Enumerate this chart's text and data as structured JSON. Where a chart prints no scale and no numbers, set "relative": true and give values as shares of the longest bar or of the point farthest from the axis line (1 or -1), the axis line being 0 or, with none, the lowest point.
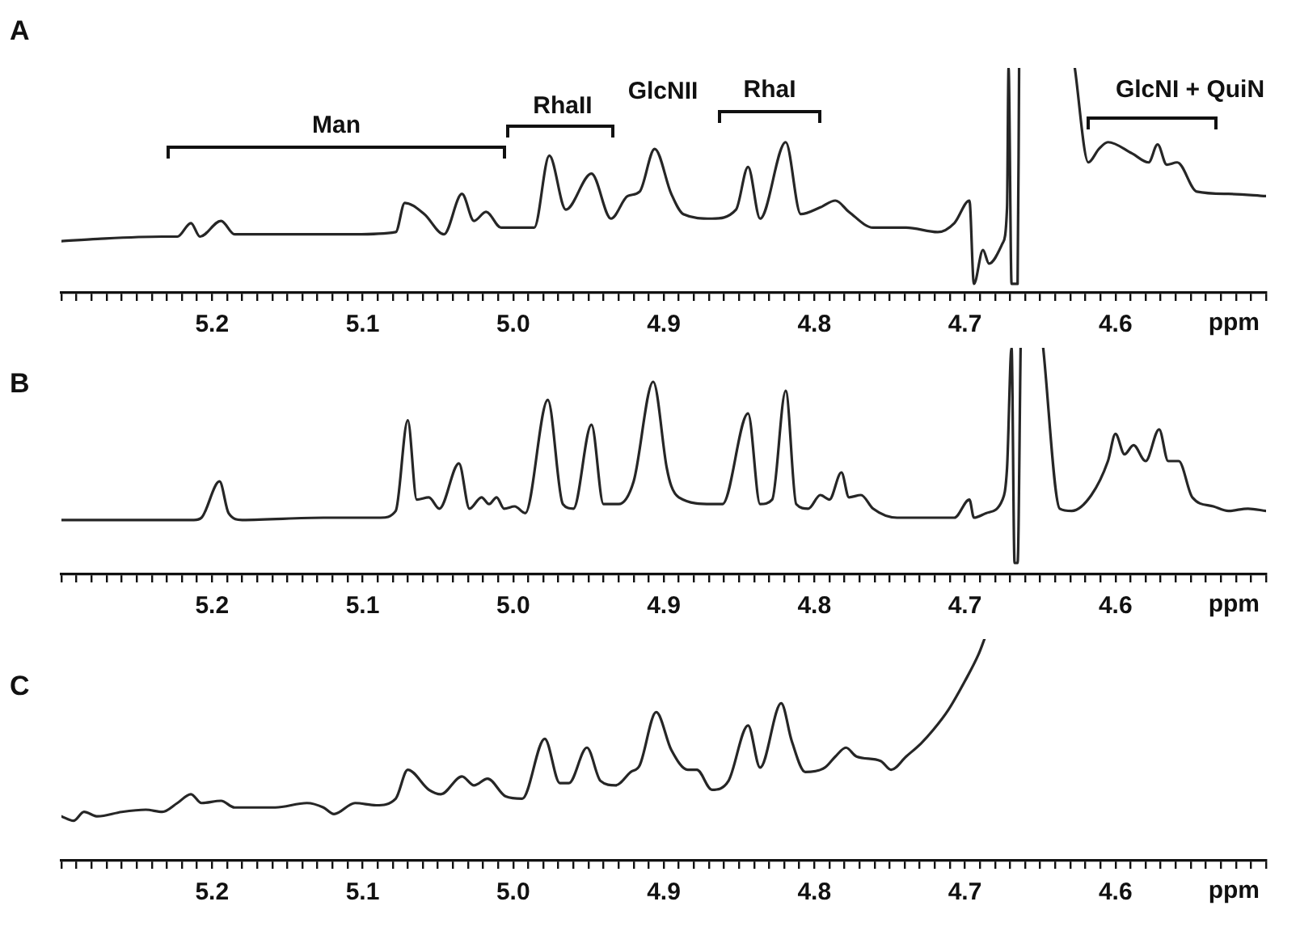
{
  "chart_data": [
    {
      "type": "line",
      "title": "A",
      "xlabel": "ppm",
      "relative": true,
      "xlim": [
        5.3,
        4.5
      ],
      "xticks": [
        {
          "value": 5.3,
          "label": null
        },
        {
          "value": 5.29,
          "label": null
        },
        {
          "value": 5.28,
          "label": null
        },
        {
          "value": 5.27,
          "label": null
        },
        {
          "value": 5.26,
          "label": null
        },
        {
          "value": 5.25,
          "label": null
        },
        {
          "value": 5.24,
          "label": null
        },
        {
          "value": 5.23,
          "label": null
        },
        {
          "value": 5.22,
          "label": null
        },
        {
          "value": 5.21,
          "label": null
        },
        5.2,
        {
          "value": 5.19,
          "label": null
        },
        {
          "value": 5.18,
          "label": null
        },
        {
          "value": 5.17,
          "label": null
        },
        {
          "value": 5.16,
          "label": null
        },
        {
          "value": 5.15,
          "label": null
        },
        {
          "value": 5.14,
          "label": null
        },
        {
          "value": 5.13,
          "label": null
        },
        {
          "value": 5.12,
          "label": null
        },
        {
          "value": 5.11,
          "label": null
        },
        5.1,
        {
          "value": 5.09,
          "label": null
        },
        {
          "value": 5.08,
          "label": null
        },
        {
          "value": 5.07,
          "label": null
        },
        {
          "value": 5.06,
          "label": null
        },
        {
          "value": 5.05,
          "label": null
        },
        {
          "value": 5.04,
          "label": null
        },
        {
          "value": 5.03,
          "label": null
        },
        {
          "value": 5.02,
          "label": null
        },
        {
          "value": 5.01,
          "label": null
        },
        {
          "value": 5.0,
          "label": "5.0"
        },
        {
          "value": 4.99,
          "label": null
        },
        {
          "value": 4.98,
          "label": null
        },
        {
          "value": 4.97,
          "label": null
        },
        {
          "value": 4.96,
          "label": null
        },
        {
          "value": 4.95,
          "label": null
        },
        {
          "value": 4.94,
          "label": null
        },
        {
          "value": 4.93,
          "label": null
        },
        {
          "value": 4.92,
          "label": null
        },
        {
          "value": 4.91,
          "label": null
        },
        4.9,
        {
          "value": 4.89,
          "label": null
        },
        {
          "value": 4.88,
          "label": null
        },
        {
          "value": 4.87,
          "label": null
        },
        {
          "value": 4.86,
          "label": null
        },
        {
          "value": 4.85,
          "label": null
        },
        {
          "value": 4.84,
          "label": null
        },
        {
          "value": 4.83,
          "label": null
        },
        {
          "value": 4.82,
          "label": null
        },
        {
          "value": 4.81,
          "label": null
        },
        4.8,
        {
          "value": 4.79,
          "label": null
        },
        {
          "value": 4.78,
          "label": null
        },
        {
          "value": 4.77,
          "label": null
        },
        {
          "value": 4.76,
          "label": null
        },
        {
          "value": 4.75,
          "label": null
        },
        {
          "value": 4.74,
          "label": null
        },
        {
          "value": 4.73,
          "label": null
        },
        {
          "value": 4.72,
          "label": null
        },
        {
          "value": 4.71,
          "label": null
        },
        4.7,
        {
          "value": 4.69,
          "label": null
        },
        {
          "value": 4.68,
          "label": null
        },
        {
          "value": 4.67,
          "label": null
        },
        {
          "value": 4.66,
          "label": null
        },
        {
          "value": 4.65,
          "label": null
        },
        {
          "value": 4.64,
          "label": null
        },
        {
          "value": 4.63,
          "label": null
        },
        {
          "value": 4.62,
          "label": null
        },
        {
          "value": 4.61,
          "label": null
        },
        4.6,
        {
          "value": 4.59,
          "label": null
        },
        {
          "value": 4.58,
          "label": null
        },
        {
          "value": 4.57,
          "label": null
        },
        {
          "value": 4.56,
          "label": null
        },
        {
          "value": 4.55,
          "label": null
        },
        {
          "value": 4.54,
          "label": null
        },
        {
          "value": 4.53,
          "label": null
        },
        {
          "value": 4.52,
          "label": null
        },
        {
          "value": 4.51,
          "label": null
        },
        {
          "value": 4.5,
          "label": null
        }
      ],
      "series": [
        {
          "color": "#262626",
          "x": [
            5.3,
            5.276,
            5.233,
            5.223,
            5.214,
            5.208,
            5.194,
            5.185,
            5.148,
            5.105,
            5.078,
            5.072,
            5.059,
            5.046,
            5.034,
            5.026,
            5.018,
            5.008,
            4.995,
            4.986,
            4.976,
            4.965,
            4.948,
            4.935,
            4.924,
            4.916,
            4.906,
            4.895,
            4.887,
            4.868,
            4.852,
            4.844,
            4.836,
            4.819,
            4.809,
            4.796,
            4.786,
            4.777,
            4.761,
            4.739,
            4.718,
            4.707,
            4.697,
            4.694,
            4.688,
            4.684,
            4.675,
            4.672,
            4.671,
            4.669,
            4.665,
            4.664,
            4.65,
            4.627,
            4.618,
            4.611,
            4.605,
            4.589,
            4.578,
            4.572,
            4.566,
            4.559,
            4.546,
            4.525,
            4.5
          ],
          "values": [
            0.23,
            0.24,
            0.25,
            0.25,
            0.31,
            0.25,
            0.32,
            0.26,
            0.26,
            0.26,
            0.27,
            0.4,
            0.35,
            0.26,
            0.44,
            0.32,
            0.36,
            0.29,
            0.29,
            0.29,
            0.61,
            0.37,
            0.53,
            0.33,
            0.43,
            0.45,
            0.64,
            0.44,
            0.35,
            0.33,
            0.37,
            0.56,
            0.33,
            0.67,
            0.35,
            0.38,
            0.41,
            0.36,
            0.29,
            0.29,
            0.27,
            0.31,
            0.41,
            0.04,
            0.19,
            0.13,
            0.22,
            0.38,
            1,
            0.04,
            0.04,
            1,
            null,
            1,
            0.58,
            0.64,
            0.67,
            0.62,
            0.58,
            0.66,
            0.57,
            0.58,
            0.45,
            0.44,
            0.43
          ]
        }
      ],
      "annotations": [
        "Man",
        "RhaII",
        "GlcNII",
        "RhaI",
        "GlcNI + QuiN"
      ]
    },
    {
      "type": "line",
      "title": "B",
      "xlabel": "ppm",
      "relative": true,
      "xlim": [
        5.3,
        4.5
      ],
      "xticks": [
        {
          "value": 5.3,
          "label": null
        },
        {
          "value": 5.29,
          "label": null
        },
        {
          "value": 5.28,
          "label": null
        },
        {
          "value": 5.27,
          "label": null
        },
        {
          "value": 5.26,
          "label": null
        },
        {
          "value": 5.25,
          "label": null
        },
        {
          "value": 5.24,
          "label": null
        },
        {
          "value": 5.23,
          "label": null
        },
        {
          "value": 5.22,
          "label": null
        },
        {
          "value": 5.21,
          "label": null
        },
        5.2,
        {
          "value": 5.19,
          "label": null
        },
        {
          "value": 5.18,
          "label": null
        },
        {
          "value": 5.17,
          "label": null
        },
        {
          "value": 5.16,
          "label": null
        },
        {
          "value": 5.15,
          "label": null
        },
        {
          "value": 5.14,
          "label": null
        },
        {
          "value": 5.13,
          "label": null
        },
        {
          "value": 5.12,
          "label": null
        },
        {
          "value": 5.11,
          "label": null
        },
        5.1,
        {
          "value": 5.09,
          "label": null
        },
        {
          "value": 5.08,
          "label": null
        },
        {
          "value": 5.07,
          "label": null
        },
        {
          "value": 5.06,
          "label": null
        },
        {
          "value": 5.05,
          "label": null
        },
        {
          "value": 5.04,
          "label": null
        },
        {
          "value": 5.03,
          "label": null
        },
        {
          "value": 5.02,
          "label": null
        },
        {
          "value": 5.01,
          "label": null
        },
        {
          "value": 5.0,
          "label": "5.0"
        },
        {
          "value": 4.99,
          "label": null
        },
        {
          "value": 4.98,
          "label": null
        },
        {
          "value": 4.97,
          "label": null
        },
        {
          "value": 4.96,
          "label": null
        },
        {
          "value": 4.95,
          "label": null
        },
        {
          "value": 4.94,
          "label": null
        },
        {
          "value": 4.93,
          "label": null
        },
        {
          "value": 4.92,
          "label": null
        },
        {
          "value": 4.91,
          "label": null
        },
        4.9,
        {
          "value": 4.89,
          "label": null
        },
        {
          "value": 4.88,
          "label": null
        },
        {
          "value": 4.87,
          "label": null
        },
        {
          "value": 4.86,
          "label": null
        },
        {
          "value": 4.85,
          "label": null
        },
        {
          "value": 4.84,
          "label": null
        },
        {
          "value": 4.83,
          "label": null
        },
        {
          "value": 4.82,
          "label": null
        },
        {
          "value": 4.81,
          "label": null
        },
        4.8,
        {
          "value": 4.79,
          "label": null
        },
        {
          "value": 4.78,
          "label": null
        },
        {
          "value": 4.77,
          "label": null
        },
        {
          "value": 4.76,
          "label": null
        },
        {
          "value": 4.75,
          "label": null
        },
        {
          "value": 4.74,
          "label": null
        },
        {
          "value": 4.73,
          "label": null
        },
        {
          "value": 4.72,
          "label": null
        },
        {
          "value": 4.71,
          "label": null
        },
        4.7,
        {
          "value": 4.69,
          "label": null
        },
        {
          "value": 4.68,
          "label": null
        },
        {
          "value": 4.67,
          "label": null
        },
        {
          "value": 4.66,
          "label": null
        },
        {
          "value": 4.65,
          "label": null
        },
        {
          "value": 4.64,
          "label": null
        },
        {
          "value": 4.63,
          "label": null
        },
        {
          "value": 4.62,
          "label": null
        },
        {
          "value": 4.61,
          "label": null
        },
        4.6,
        {
          "value": 4.59,
          "label": null
        },
        {
          "value": 4.58,
          "label": null
        },
        {
          "value": 4.57,
          "label": null
        },
        {
          "value": 4.56,
          "label": null
        },
        {
          "value": 4.55,
          "label": null
        },
        {
          "value": 4.54,
          "label": null
        },
        {
          "value": 4.53,
          "label": null
        },
        {
          "value": 4.52,
          "label": null
        },
        {
          "value": 4.51,
          "label": null
        },
        {
          "value": 4.5,
          "label": null
        }
      ],
      "series": [
        {
          "color": "#262626",
          "x": [
            5.3,
            5.233,
            5.212,
            5.207,
            5.195,
            5.189,
            5.18,
            5.126,
            5.088,
            5.078,
            5.07,
            5.064,
            5.056,
            5.049,
            5.036,
            5.029,
            5.021,
            5.016,
            5.011,
            5.006,
            4.999,
            4.992,
            4.977,
            4.967,
            4.96,
            4.948,
            4.94,
            4.93,
            4.92,
            4.907,
            4.898,
            4.895,
            4.89,
            4.868,
            4.861,
            4.844,
            4.836,
            4.828,
            4.819,
            4.812,
            4.804,
            4.796,
            4.79,
            4.782,
            4.777,
            4.769,
            4.761,
            4.745,
            4.707,
            4.697,
            4.694,
            4.686,
            4.675,
            4.672,
            4.669,
            4.667,
            4.665,
            4.663,
            4.655,
            4.648,
            4.637,
            4.629,
            4.616,
            4.605,
            4.6,
            4.594,
            4.588,
            4.58,
            4.571,
            4.565,
            4.558,
            4.549,
            4.535,
            4.525,
            4.512,
            4.5
          ],
          "values": [
            0.24,
            0.24,
            0.24,
            0.25,
            0.41,
            0.27,
            0.24,
            0.25,
            0.25,
            0.28,
            0.68,
            0.33,
            0.34,
            0.29,
            0.49,
            0.29,
            0.34,
            0.31,
            0.34,
            0.29,
            0.3,
            0.27,
            0.77,
            0.31,
            0.29,
            0.66,
            0.31,
            0.31,
            0.41,
            0.85,
            0.47,
            0.39,
            0.34,
            0.31,
            0.31,
            0.71,
            0.31,
            0.33,
            0.81,
            0.31,
            0.29,
            0.35,
            0.33,
            0.45,
            0.34,
            0.35,
            0.29,
            0.25,
            0.25,
            0.33,
            0.25,
            0.27,
            0.33,
            0.47,
            1,
            0.05,
            0.05,
            1,
            null,
            1,
            0.29,
            0.28,
            0.35,
            0.5,
            0.62,
            0.53,
            0.57,
            0.5,
            0.64,
            0.5,
            0.5,
            0.34,
            0.3,
            0.28,
            0.29,
            0.28
          ]
        }
      ]
    },
    {
      "type": "line",
      "title": "C",
      "xlabel": "ppm",
      "relative": true,
      "xlim": [
        5.3,
        4.5
      ],
      "xticks": [
        {
          "value": 5.3,
          "label": null
        },
        {
          "value": 5.29,
          "label": null
        },
        {
          "value": 5.28,
          "label": null
        },
        {
          "value": 5.27,
          "label": null
        },
        {
          "value": 5.26,
          "label": null
        },
        {
          "value": 5.25,
          "label": null
        },
        {
          "value": 5.24,
          "label": null
        },
        {
          "value": 5.23,
          "label": null
        },
        {
          "value": 5.22,
          "label": null
        },
        {
          "value": 5.21,
          "label": null
        },
        5.2,
        {
          "value": 5.19,
          "label": null
        },
        {
          "value": 5.18,
          "label": null
        },
        {
          "value": 5.17,
          "label": null
        },
        {
          "value": 5.16,
          "label": null
        },
        {
          "value": 5.15,
          "label": null
        },
        {
          "value": 5.14,
          "label": null
        },
        {
          "value": 5.13,
          "label": null
        },
        {
          "value": 5.12,
          "label": null
        },
        {
          "value": 5.11,
          "label": null
        },
        5.1,
        {
          "value": 5.09,
          "label": null
        },
        {
          "value": 5.08,
          "label": null
        },
        {
          "value": 5.07,
          "label": null
        },
        {
          "value": 5.06,
          "label": null
        },
        {
          "value": 5.05,
          "label": null
        },
        {
          "value": 5.04,
          "label": null
        },
        {
          "value": 5.03,
          "label": null
        },
        {
          "value": 5.02,
          "label": null
        },
        {
          "value": 5.01,
          "label": null
        },
        {
          "value": 5.0,
          "label": "5.0"
        },
        {
          "value": 4.99,
          "label": null
        },
        {
          "value": 4.98,
          "label": null
        },
        {
          "value": 4.97,
          "label": null
        },
        {
          "value": 4.96,
          "label": null
        },
        {
          "value": 4.95,
          "label": null
        },
        {
          "value": 4.94,
          "label": null
        },
        {
          "value": 4.93,
          "label": null
        },
        {
          "value": 4.92,
          "label": null
        },
        {
          "value": 4.91,
          "label": null
        },
        4.9,
        {
          "value": 4.89,
          "label": null
        },
        {
          "value": 4.88,
          "label": null
        },
        {
          "value": 4.87,
          "label": null
        },
        {
          "value": 4.86,
          "label": null
        },
        {
          "value": 4.85,
          "label": null
        },
        {
          "value": 4.84,
          "label": null
        },
        {
          "value": 4.83,
          "label": null
        },
        {
          "value": 4.82,
          "label": null
        },
        {
          "value": 4.81,
          "label": null
        },
        4.8,
        {
          "value": 4.79,
          "label": null
        },
        {
          "value": 4.78,
          "label": null
        },
        {
          "value": 4.77,
          "label": null
        },
        {
          "value": 4.76,
          "label": null
        },
        {
          "value": 4.75,
          "label": null
        },
        {
          "value": 4.74,
          "label": null
        },
        {
          "value": 4.73,
          "label": null
        },
        {
          "value": 4.72,
          "label": null
        },
        {
          "value": 4.71,
          "label": null
        },
        4.7,
        {
          "value": 4.69,
          "label": null
        },
        {
          "value": 4.68,
          "label": null
        },
        {
          "value": 4.67,
          "label": null
        },
        {
          "value": 4.66,
          "label": null
        },
        {
          "value": 4.65,
          "label": null
        },
        {
          "value": 4.64,
          "label": null
        },
        {
          "value": 4.63,
          "label": null
        },
        {
          "value": 4.62,
          "label": null
        },
        {
          "value": 4.61,
          "label": null
        },
        4.6,
        {
          "value": 4.59,
          "label": null
        },
        {
          "value": 4.58,
          "label": null
        },
        {
          "value": 4.57,
          "label": null
        },
        {
          "value": 4.56,
          "label": null
        },
        {
          "value": 4.55,
          "label": null
        },
        {
          "value": 4.54,
          "label": null
        },
        {
          "value": 4.53,
          "label": null
        },
        {
          "value": 4.52,
          "label": null
        },
        {
          "value": 4.51,
          "label": null
        },
        {
          "value": 4.5,
          "label": null
        }
      ],
      "series": [
        {
          "color": "#262626",
          "x": [
            5.3,
            5.292,
            5.285,
            5.276,
            5.26,
            5.244,
            5.233,
            5.223,
            5.214,
            5.207,
            5.194,
            5.185,
            5.158,
            5.137,
            5.126,
            5.119,
            5.105,
            5.091,
            5.078,
            5.07,
            5.056,
            5.048,
            5.034,
            5.026,
            5.017,
            5.005,
            4.994,
            4.979,
            4.969,
            4.963,
            4.951,
            4.942,
            4.932,
            4.922,
            4.916,
            4.905,
            4.895,
            4.884,
            4.878,
            4.868,
            4.857,
            4.844,
            4.836,
            4.822,
            4.815,
            4.806,
            4.793,
            4.786,
            4.779,
            4.772,
            4.756,
            4.749,
            4.739,
            4.729,
            4.721,
            4.711,
            4.7,
            4.691,
            4.687
          ],
          "values": [
            0.2,
            0.18,
            0.22,
            0.2,
            0.22,
            0.23,
            0.22,
            0.26,
            0.3,
            0.26,
            0.27,
            0.24,
            0.24,
            0.26,
            0.24,
            0.21,
            0.26,
            0.25,
            0.28,
            0.41,
            0.32,
            0.3,
            0.38,
            0.34,
            0.37,
            0.29,
            0.28,
            0.55,
            0.35,
            0.35,
            0.51,
            0.36,
            0.34,
            0.4,
            0.43,
            0.67,
            0.5,
            0.41,
            0.41,
            0.32,
            0.36,
            0.61,
            0.42,
            0.71,
            0.54,
            0.4,
            0.42,
            0.47,
            0.51,
            0.47,
            0.45,
            0.41,
            0.47,
            0.53,
            0.59,
            0.68,
            0.81,
            0.93,
            1
          ]
        }
      ]
    }
  ]
}
